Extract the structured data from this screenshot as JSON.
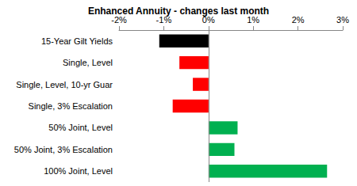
{
  "chart_data": {
    "type": "bar",
    "orientation": "horizontal",
    "title": "Enhanced Annuity - changes last month",
    "categories": [
      "15-Year Gilt Yields",
      "Single, Level",
      "Single, Level, 10-yr Guar",
      "Single, 3% Escalation",
      "50% Joint, Level",
      "50% Joint, 3% Escalation",
      "100% Joint, Level"
    ],
    "values": [
      -1.1,
      -0.65,
      -0.35,
      -0.8,
      0.65,
      0.58,
      2.65
    ],
    "colors": [
      "#000000",
      "#ff0000",
      "#ff0000",
      "#ff0000",
      "#00b050",
      "#00b050",
      "#00b050"
    ],
    "xlim": [
      -2,
      3
    ],
    "xticks": [
      {
        "value": -2,
        "label": "-2%"
      },
      {
        "value": -1,
        "label": "-1%"
      },
      {
        "value": 0,
        "label": "0%"
      },
      {
        "value": 1,
        "label": "1%"
      },
      {
        "value": 2,
        "label": "2%"
      },
      {
        "value": 3,
        "label": "3%"
      }
    ],
    "grid": false
  }
}
